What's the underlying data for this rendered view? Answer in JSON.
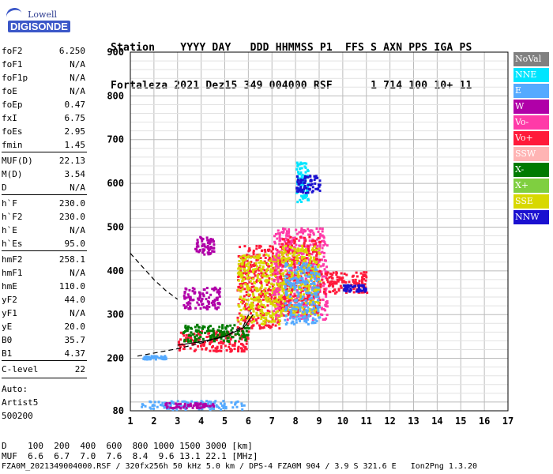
{
  "logo": {
    "line1": "Lowell",
    "line2": "DIGISONDE"
  },
  "header": {
    "line1": "Station    YYYY DAY   DDD HHMMSS P1  FFS S AXN PPS IGA PS",
    "line2": "Fortaleza 2021 Dez15 349 004000 RSF      1 714 100 10+ 11"
  },
  "params": [
    {
      "k": "foF2",
      "v": "6.250"
    },
    {
      "k": "foF1",
      "v": "N/A"
    },
    {
      "k": "foF1p",
      "v": "N/A"
    },
    {
      "k": "foE",
      "v": "N/A"
    },
    {
      "k": "foEp",
      "v": "0.47"
    },
    {
      "k": "fxI",
      "v": "6.75"
    },
    {
      "k": "foEs",
      "v": "2.95"
    },
    {
      "k": "fmin",
      "v": "1.45"
    },
    {
      "k": "MUF(D)",
      "v": "22.13"
    },
    {
      "k": "M(D)",
      "v": "3.54"
    },
    {
      "k": "D",
      "v": "N/A"
    },
    {
      "k": "h`F",
      "v": "230.0"
    },
    {
      "k": "h`F2",
      "v": "230.0"
    },
    {
      "k": "h`E",
      "v": "N/A"
    },
    {
      "k": "h`Es",
      "v": "95.0"
    },
    {
      "k": "hmF2",
      "v": "258.1"
    },
    {
      "k": "hmF1",
      "v": "N/A"
    },
    {
      "k": "hmE",
      "v": "110.0"
    },
    {
      "k": "yF2",
      "v": "44.0"
    },
    {
      "k": "yF1",
      "v": "N/A"
    },
    {
      "k": "yE",
      "v": "20.0"
    },
    {
      "k": "B0",
      "v": "35.7"
    },
    {
      "k": "B1",
      "v": "4.37"
    },
    {
      "k": "C-level",
      "v": "22"
    }
  ],
  "auto": {
    "line1": "Auto:",
    "line2": "Artist5",
    "line3": "500200"
  },
  "legend": [
    {
      "label": "NoVal",
      "color": "#808080"
    },
    {
      "label": "NNE",
      "color": "#00e5ff"
    },
    {
      "label": "E",
      "color": "#55aaff"
    },
    {
      "label": "W",
      "color": "#b000a8"
    },
    {
      "label": "Vo-",
      "color": "#ff3aa8"
    },
    {
      "label": "Vo+",
      "color": "#ff1a3a"
    },
    {
      "label": "SSW",
      "color": "#ffb4b4"
    },
    {
      "label": "X-",
      "color": "#007a00"
    },
    {
      "label": "X+",
      "color": "#7fcf40"
    },
    {
      "label": "SSE",
      "color": "#d8d800"
    },
    {
      "label": "NNW",
      "color": "#1a10d0"
    }
  ],
  "footer": {
    "d_line": "D    100  200  400  600  800 1000 1500 3000 [km]",
    "muf_line": "MUF  6.6  6.7  7.0  7.6  8.4  9.6 13.1 22.1 [MHz]",
    "info_line": "FZA0M_2021349004000.RSF / 320fx256h 50 kHz 5.0 km / DPS-4 FZA0M 904 / 3.9 S 321.6 E   Ion2Png 1.3.20"
  },
  "chart_data": {
    "type": "scatter",
    "x_ticks": [
      1,
      2,
      3,
      4,
      5,
      6,
      7,
      8,
      9,
      10,
      11,
      12,
      13,
      14,
      15,
      16,
      17
    ],
    "y_ticks": [
      80,
      200,
      300,
      400,
      500,
      600,
      700,
      800,
      900
    ],
    "xlim": [
      1,
      17
    ],
    "ylim": [
      80,
      900
    ],
    "grid": true,
    "clusters": [
      {
        "x": [
          1.4,
          5.8
        ],
        "y": [
          85,
          105
        ],
        "color": "#55aaff"
      },
      {
        "x": [
          2.4,
          4.5
        ],
        "y": [
          88,
          100
        ],
        "color": "#b000a8"
      },
      {
        "x": [
          1.5,
          2.5
        ],
        "y": [
          200,
          208
        ],
        "color": "#55aaff"
      },
      {
        "x": [
          3.0,
          6.0
        ],
        "y": [
          218,
          265
        ],
        "color": "#ff1a3a"
      },
      {
        "x": [
          3.2,
          6.0
        ],
        "y": [
          240,
          280
        ],
        "color": "#007a00"
      },
      {
        "x": [
          3.2,
          4.8
        ],
        "y": [
          315,
          365
        ],
        "color": "#b000a8"
      },
      {
        "x": [
          3.7,
          4.5
        ],
        "y": [
          440,
          480
        ],
        "color": "#b000a8"
      },
      {
        "x": [
          5.5,
          7.3
        ],
        "y": [
          270,
          460
        ],
        "color": "#ff1a3a"
      },
      {
        "x": [
          5.5,
          7.3
        ],
        "y": [
          280,
          440
        ],
        "color": "#d8d800"
      },
      {
        "x": [
          7.0,
          9.3
        ],
        "y": [
          290,
          500
        ],
        "color": "#ff3aa8"
      },
      {
        "x": [
          7.3,
          9.0
        ],
        "y": [
          300,
          480
        ],
        "color": "#ff1a3a"
      },
      {
        "x": [
          7.3,
          9.0
        ],
        "y": [
          300,
          460
        ],
        "color": "#d8d800"
      },
      {
        "x": [
          7.5,
          9.0
        ],
        "y": [
          280,
          420
        ],
        "color": "#55aaff"
      },
      {
        "x": [
          8.0,
          8.5
        ],
        "y": [
          560,
          650
        ],
        "color": "#00e5ff"
      },
      {
        "x": [
          8.0,
          9.0
        ],
        "y": [
          580,
          620
        ],
        "color": "#1a10d0"
      },
      {
        "x": [
          9.0,
          11.0
        ],
        "y": [
          350,
          400
        ],
        "color": "#ff1a3a"
      },
      {
        "x": [
          10.0,
          11.0
        ],
        "y": [
          355,
          370
        ],
        "color": "#1a10d0"
      }
    ],
    "curves": [
      {
        "name": "",
        "x": [
          1,
          1.5,
          2,
          2.5,
          3
        ],
        "y": [
          440,
          410,
          380,
          355,
          335
        ],
        "style": "dashed"
      },
      {
        "name": "",
        "x": [
          1.3,
          2,
          3,
          4,
          5,
          5.8,
          6.1
        ],
        "y": [
          205,
          212,
          222,
          235,
          250,
          275,
          310
        ],
        "style": "dashed"
      },
      {
        "name": "",
        "x": [
          3.0,
          4,
          5,
          5.8,
          6.2
        ],
        "y": [
          230,
          238,
          250,
          270,
          300
        ],
        "style": "solid"
      }
    ]
  }
}
